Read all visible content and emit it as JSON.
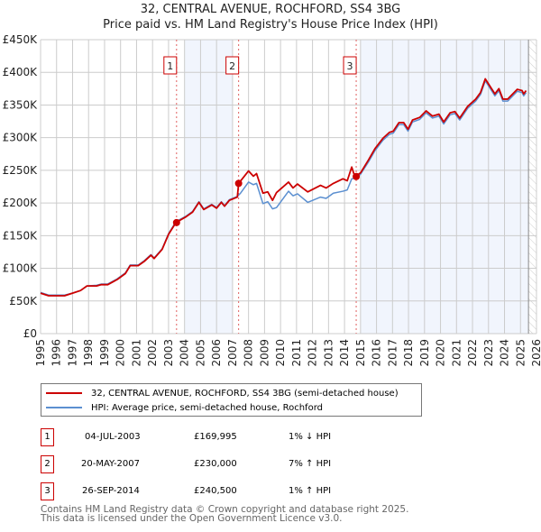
{
  "chart_data": {
    "type": "line",
    "title": "32, CENTRAL AVENUE, ROCHFORD, SS4 3BG",
    "subtitle": "Price paid vs. HM Land Registry's House Price Index (HPI)",
    "xlim": [
      1995,
      2026
    ],
    "ylim": [
      0,
      450000
    ],
    "y_ticks": [
      0,
      50000,
      100000,
      150000,
      200000,
      250000,
      300000,
      350000,
      400000,
      450000
    ],
    "y_tick_labels": [
      "£0",
      "£50K",
      "£100K",
      "£150K",
      "£200K",
      "£250K",
      "£300K",
      "£350K",
      "£400K",
      "£450K"
    ],
    "x_ticks": [
      1995,
      1996,
      1997,
      1998,
      1999,
      2000,
      2001,
      2002,
      2003,
      2004,
      2005,
      2006,
      2007,
      2008,
      2009,
      2010,
      2011,
      2012,
      2013,
      2014,
      2015,
      2016,
      2017,
      2018,
      2019,
      2020,
      2021,
      2022,
      2023,
      2024,
      2025,
      2026
    ],
    "grid": true,
    "shaded_ranges": [
      [
        2004.0,
        2007.0
      ],
      [
        2015.0,
        2025.5
      ]
    ],
    "hatched_range": [
      2025.5,
      2026
    ],
    "series": [
      {
        "name": "32, CENTRAL AVENUE, ROCHFORD, SS4 3BG (semi-detached house)",
        "color": "#cc0000",
        "x": [
          1995.0,
          1995.5,
          1996.5,
          1997.0,
          1997.5,
          1997.9,
          1998.5,
          1998.8,
          1999.2,
          1999.8,
          2000.3,
          2000.6,
          2001.1,
          2001.5,
          2001.9,
          2002.1,
          2002.6,
          2003.0,
          2003.46,
          2004.1,
          2004.5,
          2004.9,
          2005.2,
          2005.7,
          2006.0,
          2006.3,
          2006.5,
          2006.8,
          2007.3,
          2007.38,
          2008.0,
          2008.3,
          2008.5,
          2008.9,
          2009.2,
          2009.5,
          2009.75,
          2010.5,
          2010.78,
          2011.06,
          2011.7,
          2012.5,
          2012.85,
          2013.3,
          2013.9,
          2014.17,
          2014.45,
          2014.64,
          2015.0,
          2015.5,
          2015.9,
          2016.4,
          2016.8,
          2017.05,
          2017.4,
          2017.7,
          2017.97,
          2018.25,
          2018.7,
          2019.1,
          2019.5,
          2019.9,
          2020.2,
          2020.6,
          2020.9,
          2021.2,
          2021.7,
          2022.2,
          2022.5,
          2022.8,
          2023.4,
          2023.65,
          2023.9,
          2024.2,
          2024.8,
          2025.1,
          2025.2,
          2025.35
        ],
        "y": [
          62000,
          58000,
          58000,
          62000,
          66000,
          73000,
          73000,
          75000,
          75000,
          83000,
          92000,
          104000,
          104000,
          111000,
          120000,
          115000,
          129000,
          152000,
          169995,
          179000,
          186000,
          201000,
          190000,
          197000,
          192000,
          201000,
          195000,
          204000,
          209000,
          230000,
          249000,
          241000,
          245000,
          215000,
          217000,
          204000,
          216000,
          232000,
          223000,
          229000,
          217000,
          227000,
          223000,
          230000,
          237000,
          234000,
          255000,
          240500,
          246000,
          266000,
          283000,
          299000,
          308000,
          310000,
          323000,
          323000,
          313000,
          327000,
          331000,
          341000,
          333000,
          336000,
          324000,
          338000,
          340000,
          330000,
          348000,
          359000,
          369000,
          390000,
          367000,
          375000,
          359000,
          359000,
          374000,
          372000,
          367000,
          372000
        ]
      },
      {
        "name": "HPI: Average price, semi-detached house, Rochford",
        "color": "#5b8fd0",
        "x": [
          1995.0,
          1995.5,
          1996.5,
          1997.0,
          1997.5,
          1997.9,
          1998.5,
          1998.8,
          1999.2,
          1999.8,
          2000.3,
          2000.6,
          2001.1,
          2001.5,
          2001.9,
          2002.1,
          2002.6,
          2003.0,
          2003.46,
          2004.1,
          2004.5,
          2004.9,
          2005.2,
          2005.7,
          2006.0,
          2006.3,
          2006.5,
          2006.8,
          2007.3,
          2007.5,
          2008.0,
          2008.3,
          2008.5,
          2008.9,
          2009.2,
          2009.5,
          2009.75,
          2010.5,
          2010.78,
          2011.06,
          2011.7,
          2012.5,
          2012.85,
          2013.3,
          2013.9,
          2014.17,
          2014.45,
          2014.64,
          2015.0,
          2015.5,
          2015.9,
          2016.4,
          2016.8,
          2017.05,
          2017.4,
          2017.7,
          2017.97,
          2018.25,
          2018.7,
          2019.1,
          2019.5,
          2019.9,
          2020.2,
          2020.6,
          2020.9,
          2021.2,
          2021.7,
          2022.2,
          2022.5,
          2022.8,
          2023.4,
          2023.65,
          2023.9,
          2024.2,
          2024.8,
          2025.1,
          2025.2,
          2025.35
        ],
        "y": [
          63000,
          59000,
          59000,
          62000,
          66000,
          73000,
          74000,
          76000,
          76000,
          84000,
          93000,
          105000,
          105000,
          112000,
          121000,
          116000,
          130000,
          153000,
          171500,
          180000,
          187000,
          202000,
          191000,
          198000,
          193000,
          202000,
          196000,
          205000,
          210000,
          215000,
          232000,
          228000,
          230000,
          199000,
          202000,
          191000,
          193000,
          218000,
          211000,
          214000,
          201000,
          209000,
          207000,
          215000,
          218000,
          220000,
          237000,
          238000,
          244000,
          263000,
          280000,
          296000,
          305000,
          307000,
          320000,
          320000,
          310000,
          324000,
          328000,
          338000,
          330000,
          333000,
          321000,
          335000,
          337000,
          327000,
          345000,
          356000,
          366000,
          387000,
          364000,
          372000,
          356000,
          356000,
          371000,
          369000,
          364000,
          369000
        ]
      }
    ],
    "sales": [
      {
        "n": "1",
        "x": 2003.5,
        "date": "04-JUL-2003",
        "price": "£169,995",
        "value": 169995,
        "hpi": "1% ↓ HPI"
      },
      {
        "n": "2",
        "x": 2007.38,
        "date": "20-MAY-2007",
        "price": "£230,000",
        "value": 230000,
        "hpi": "7% ↑ HPI"
      },
      {
        "n": "3",
        "x": 2014.73,
        "date": "26-SEP-2014",
        "price": "£240,500",
        "value": 240500,
        "hpi": "1% ↑ HPI"
      }
    ]
  },
  "footer": {
    "line1": "Contains HM Land Registry data © Crown copyright and database right 2025.",
    "line2": "This data is licensed under the Open Government Licence v3.0."
  }
}
